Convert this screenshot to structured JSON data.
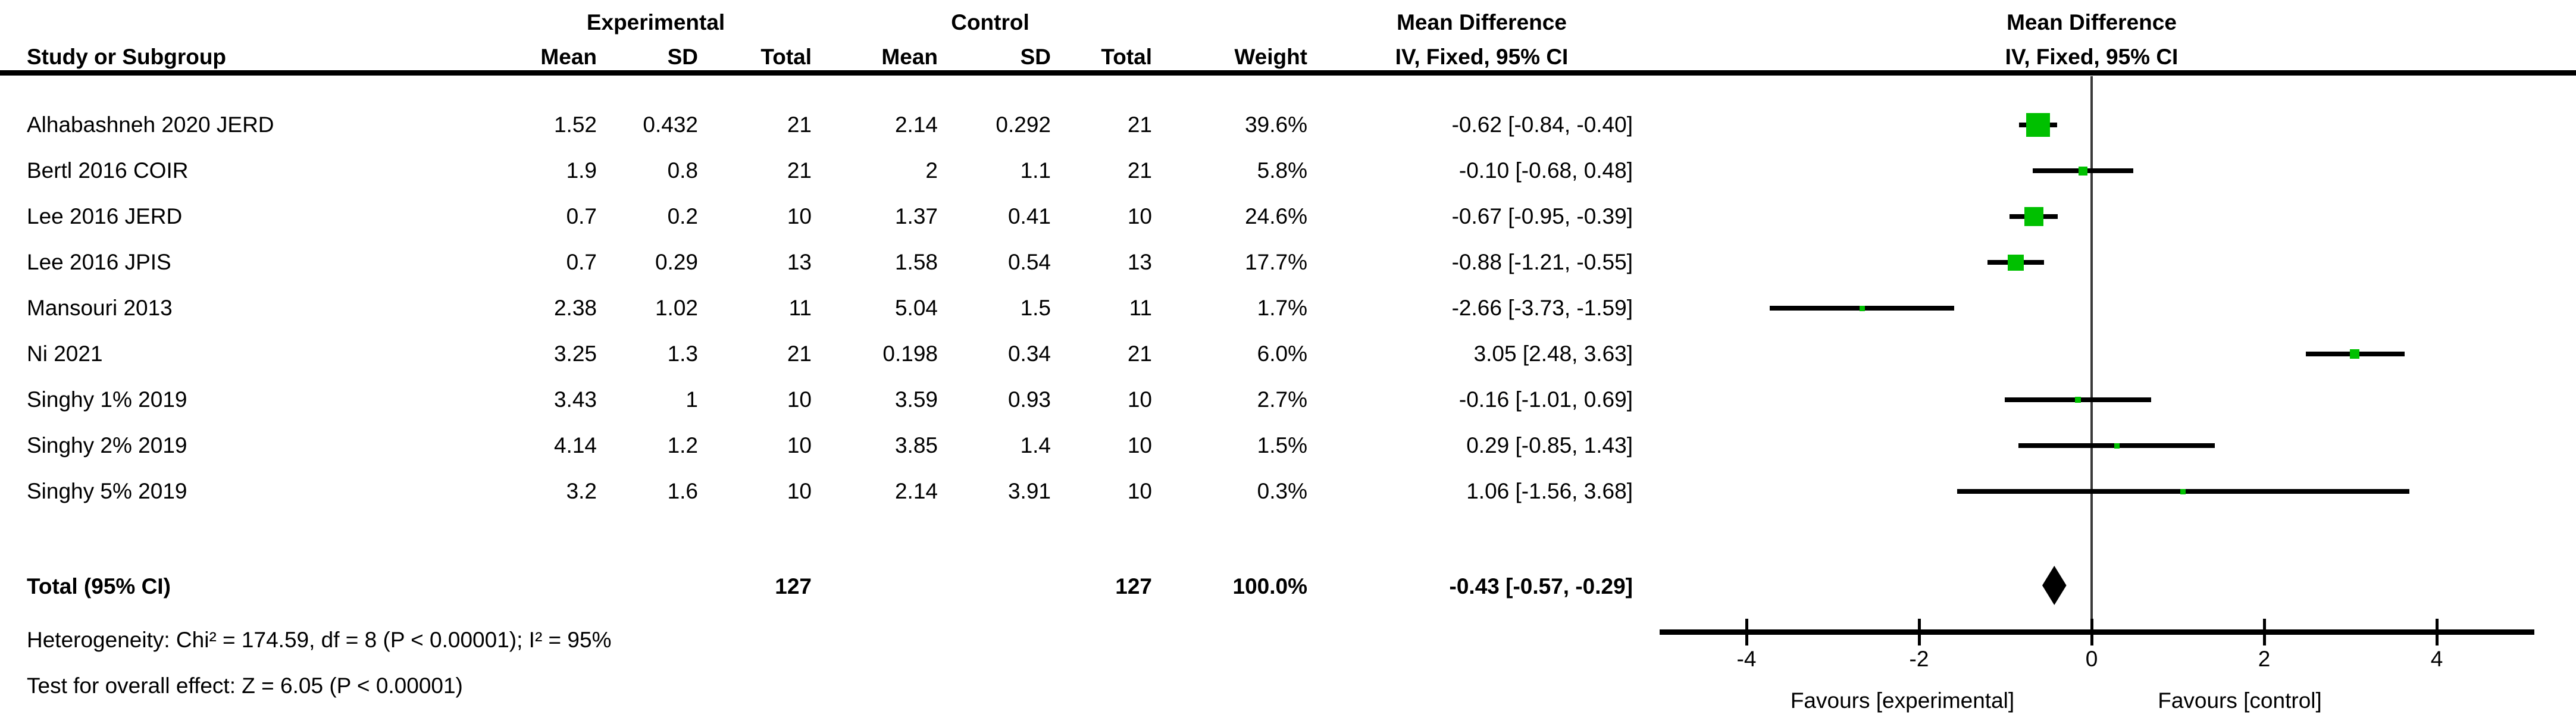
{
  "groups": {
    "experimental": "Experimental",
    "control": "Control"
  },
  "columns": {
    "study": "Study or Subgroup",
    "mean": "Mean",
    "sd": "SD",
    "total": "Total",
    "weight": "Weight"
  },
  "md_header": {
    "line1": "Mean Difference",
    "line2": "IV, Fixed, 95% CI"
  },
  "footer": {
    "heterogeneity": "Heterogeneity: Chi² = 174.59, df = 8 (P < 0.00001); I² = 95%",
    "overall": "Test for overall effect: Z = 6.05 (P < 0.00001)"
  },
  "chart_data": {
    "type": "forest",
    "title": "Mean Difference IV, Fixed, 95% CI",
    "axis": {
      "ticks": [
        -4,
        -2,
        0,
        2,
        4
      ],
      "xlim": [
        -5,
        5.1
      ],
      "zero_line": 0
    },
    "favours_left": "Favours [experimental]",
    "favours_right": "Favours [control]",
    "marker_color": "#00C000",
    "ci_color": "#000000",
    "diamond_color": "#000000",
    "studies": [
      {
        "name": "Alhabashneh 2020 JERD",
        "mean_e": "1.52",
        "sd_e": "0.432",
        "total_e": "21",
        "mean_c": "2.14",
        "sd_c": "0.292",
        "total_c": "21",
        "weight": "39.6%",
        "ci_label": "-0.62 [-0.84, -0.40]",
        "md": -0.62,
        "ci_low": -0.84,
        "ci_high": -0.4,
        "weight_pct": 39.6
      },
      {
        "name": "Bertl 2016 COIR",
        "mean_e": "1.9",
        "sd_e": "0.8",
        "total_e": "21",
        "mean_c": "2",
        "sd_c": "1.1",
        "total_c": "21",
        "weight": "5.8%",
        "ci_label": "-0.10 [-0.68, 0.48]",
        "md": -0.1,
        "ci_low": -0.68,
        "ci_high": 0.48,
        "weight_pct": 5.8
      },
      {
        "name": "Lee 2016 JERD",
        "mean_e": "0.7",
        "sd_e": "0.2",
        "total_e": "10",
        "mean_c": "1.37",
        "sd_c": "0.41",
        "total_c": "10",
        "weight": "24.6%",
        "ci_label": "-0.67 [-0.95, -0.39]",
        "md": -0.67,
        "ci_low": -0.95,
        "ci_high": -0.39,
        "weight_pct": 24.6
      },
      {
        "name": "Lee 2016 JPIS",
        "mean_e": "0.7",
        "sd_e": "0.29",
        "total_e": "13",
        "mean_c": "1.58",
        "sd_c": "0.54",
        "total_c": "13",
        "weight": "17.7%",
        "ci_label": "-0.88 [-1.21, -0.55]",
        "md": -0.88,
        "ci_low": -1.21,
        "ci_high": -0.55,
        "weight_pct": 17.7
      },
      {
        "name": "Mansouri 2013",
        "mean_e": "2.38",
        "sd_e": "1.02",
        "total_e": "11",
        "mean_c": "5.04",
        "sd_c": "1.5",
        "total_c": "11",
        "weight": "1.7%",
        "ci_label": "-2.66 [-3.73, -1.59]",
        "md": -2.66,
        "ci_low": -3.73,
        "ci_high": -1.59,
        "weight_pct": 1.7
      },
      {
        "name": "Ni 2021",
        "mean_e": "3.25",
        "sd_e": "1.3",
        "total_e": "21",
        "mean_c": "0.198",
        "sd_c": "0.34",
        "total_c": "21",
        "weight": "6.0%",
        "ci_label": "3.05 [2.48, 3.63]",
        "md": 3.05,
        "ci_low": 2.48,
        "ci_high": 3.63,
        "weight_pct": 6.0
      },
      {
        "name": "Singhy 1% 2019",
        "mean_e": "3.43",
        "sd_e": "1",
        "total_e": "10",
        "mean_c": "3.59",
        "sd_c": "0.93",
        "total_c": "10",
        "weight": "2.7%",
        "ci_label": "-0.16 [-1.01, 0.69]",
        "md": -0.16,
        "ci_low": -1.01,
        "ci_high": 0.69,
        "weight_pct": 2.7
      },
      {
        "name": "Singhy 2% 2019",
        "mean_e": "4.14",
        "sd_e": "1.2",
        "total_e": "10",
        "mean_c": "3.85",
        "sd_c": "1.4",
        "total_c": "10",
        "weight": "1.5%",
        "ci_label": "0.29 [-0.85, 1.43]",
        "md": 0.29,
        "ci_low": -0.85,
        "ci_high": 1.43,
        "weight_pct": 1.5
      },
      {
        "name": "Singhy 5% 2019",
        "mean_e": "3.2",
        "sd_e": "1.6",
        "total_e": "10",
        "mean_c": "2.14",
        "sd_c": "3.91",
        "total_c": "10",
        "weight": "0.3%",
        "ci_label": "1.06 [-1.56, 3.68]",
        "md": 1.06,
        "ci_low": -1.56,
        "ci_high": 3.68,
        "weight_pct": 0.3
      }
    ],
    "total": {
      "label": "Total (95% CI)",
      "total_e": "127",
      "total_c": "127",
      "weight": "100.0%",
      "ci_label": "-0.43 [-0.57, -0.29]",
      "md": -0.43,
      "ci_low": -0.57,
      "ci_high": -0.29
    }
  }
}
